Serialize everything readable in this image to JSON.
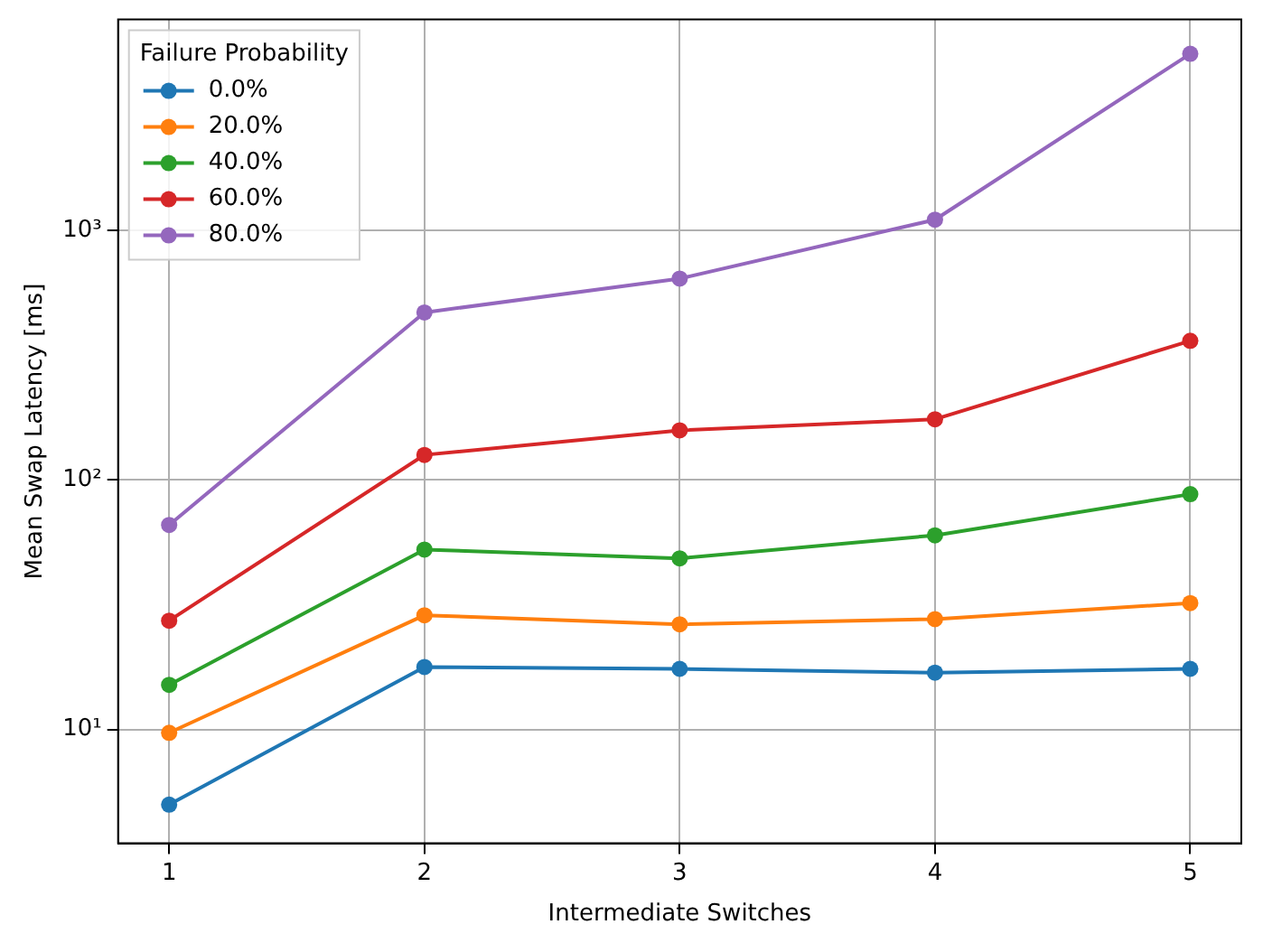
{
  "chart_data": {
    "type": "line",
    "xlabel": "Intermediate Switches",
    "ylabel": "Mean Swap Latency [ms]",
    "legend_title": "Failure Probability",
    "x": [
      1,
      2,
      3,
      4,
      5
    ],
    "xlim": [
      0.8,
      5.2
    ],
    "xticks": [
      1,
      2,
      3,
      4,
      5
    ],
    "ylim": [
      3.5,
      7000
    ],
    "yticks": [
      {
        "value": 10,
        "label": "10¹"
      },
      {
        "value": 100,
        "label": "10²"
      },
      {
        "value": 1000,
        "label": "10³"
      }
    ],
    "log": "y",
    "grid": true,
    "legend": "top left",
    "marker": "circle",
    "line_style": "solid",
    "series": [
      {
        "name": "0.0%",
        "color": "#1f77b4",
        "values": [
          5.0,
          17.8,
          17.5,
          16.9,
          17.5
        ]
      },
      {
        "name": "20.0%",
        "color": "#ff7f0e",
        "values": [
          9.7,
          28.7,
          26.4,
          27.7,
          32.1
        ]
      },
      {
        "name": "40.0%",
        "color": "#2ca02c",
        "values": [
          15.1,
          52.6,
          48.5,
          60,
          87.7
        ]
      },
      {
        "name": "60.0%",
        "color": "#d62728",
        "values": [
          27.3,
          126,
          158,
          175,
          361
        ]
      },
      {
        "name": "80.0%",
        "color": "#9467bd",
        "values": [
          66,
          469,
          641,
          1104,
          5100
        ]
      }
    ]
  }
}
